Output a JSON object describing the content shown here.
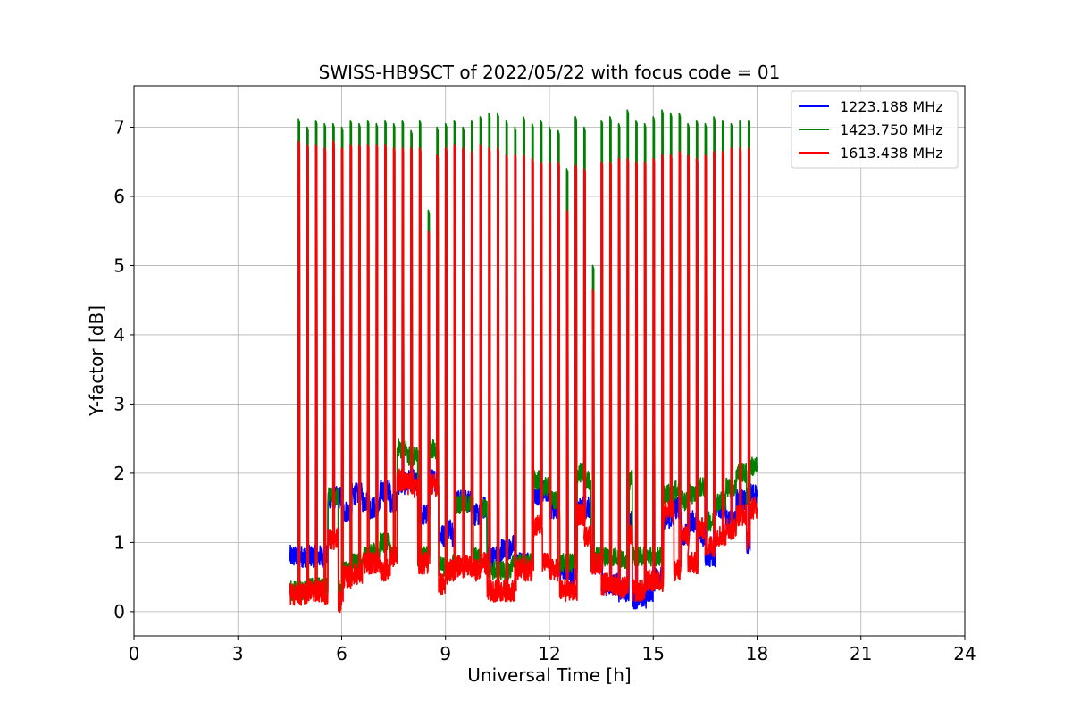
{
  "chart_data": {
    "type": "line",
    "title": "SWISS-HB9SCT of 2022/05/22 with focus code = 01",
    "xlabel": "Universal Time [h]",
    "ylabel": "Y-factor [dB]",
    "xlim": [
      0,
      24
    ],
    "ylim": [
      -0.35,
      7.6
    ],
    "xticks": [
      0,
      3,
      6,
      9,
      12,
      15,
      18,
      21,
      24
    ],
    "xtick_labels": [
      "0",
      "3",
      "6",
      "9",
      "12",
      "15",
      "18",
      "21",
      "24"
    ],
    "yticks": [
      0,
      1,
      2,
      3,
      4,
      5,
      6,
      7
    ],
    "ytick_labels": [
      "0",
      "1",
      "2",
      "3",
      "4",
      "5",
      "6",
      "7"
    ],
    "grid": true,
    "legend_position": "top-right",
    "series": [
      {
        "name": "1223.188 MHz",
        "color": "#0000ff",
        "baseline": [
          [
            4.5,
            0.8
          ],
          [
            5.0,
            0.8
          ],
          [
            5.5,
            0.8
          ],
          [
            5.6,
            1.65
          ],
          [
            5.9,
            1.65
          ],
          [
            6.0,
            1.45
          ],
          [
            6.3,
            1.7
          ],
          [
            6.6,
            1.6
          ],
          [
            6.8,
            1.5
          ],
          [
            7.1,
            1.75
          ],
          [
            7.4,
            1.6
          ],
          [
            7.6,
            1.85
          ],
          [
            7.9,
            1.9
          ],
          [
            8.1,
            1.85
          ],
          [
            8.2,
            1.4
          ],
          [
            8.4,
            1.4
          ],
          [
            8.5,
            1.9
          ],
          [
            8.7,
            1.9
          ],
          [
            8.8,
            1.1
          ],
          [
            9.0,
            1.2
          ],
          [
            9.2,
            1.1
          ],
          [
            9.3,
            1.6
          ],
          [
            9.6,
            1.6
          ],
          [
            9.8,
            1.4
          ],
          [
            10.0,
            1.5
          ],
          [
            10.2,
            0.8
          ],
          [
            10.6,
            0.9
          ],
          [
            10.9,
            0.95
          ],
          [
            11.0,
            0.7
          ],
          [
            11.3,
            0.7
          ],
          [
            11.5,
            1.7
          ],
          [
            11.8,
            1.75
          ],
          [
            12.0,
            1.5
          ],
          [
            12.3,
            0.6
          ],
          [
            12.6,
            0.5
          ],
          [
            12.8,
            1.5
          ],
          [
            13.0,
            1.5
          ],
          [
            13.2,
            0.7
          ],
          [
            13.5,
            0.4
          ],
          [
            14.0,
            0.3
          ],
          [
            14.3,
            1.3
          ],
          [
            14.4,
            0.2
          ],
          [
            14.8,
            0.3
          ],
          [
            15.0,
            0.5
          ],
          [
            15.3,
            1.35
          ],
          [
            15.6,
            1.5
          ],
          [
            15.8,
            1.1
          ],
          [
            16.0,
            1.3
          ],
          [
            16.3,
            1.1
          ],
          [
            16.5,
            0.8
          ],
          [
            16.8,
            1.5
          ],
          [
            17.1,
            1.3
          ],
          [
            17.4,
            1.6
          ],
          [
            17.7,
            1.0
          ],
          [
            17.8,
            1.7
          ],
          [
            18.0,
            1.65
          ]
        ]
      },
      {
        "name": "1423.750 MHz",
        "color": "#008000",
        "baseline": [
          [
            4.5,
            0.3
          ],
          [
            5.0,
            0.35
          ],
          [
            5.5,
            0.35
          ],
          [
            5.6,
            1.65
          ],
          [
            5.9,
            0.35
          ],
          [
            6.0,
            0.6
          ],
          [
            6.3,
            0.7
          ],
          [
            6.6,
            0.8
          ],
          [
            6.8,
            0.85
          ],
          [
            7.1,
            1.0
          ],
          [
            7.4,
            0.8
          ],
          [
            7.6,
            2.35
          ],
          [
            7.9,
            2.25
          ],
          [
            8.1,
            2.3
          ],
          [
            8.2,
            0.8
          ],
          [
            8.4,
            0.8
          ],
          [
            8.5,
            2.35
          ],
          [
            8.7,
            2.3
          ],
          [
            8.8,
            0.65
          ],
          [
            9.0,
            0.6
          ],
          [
            9.2,
            0.7
          ],
          [
            9.3,
            1.55
          ],
          [
            9.6,
            1.55
          ],
          [
            9.8,
            0.8
          ],
          [
            10.0,
            1.5
          ],
          [
            10.2,
            0.6
          ],
          [
            10.6,
            0.6
          ],
          [
            10.9,
            0.7
          ],
          [
            11.0,
            0.7
          ],
          [
            11.3,
            0.7
          ],
          [
            11.5,
            1.9
          ],
          [
            11.8,
            1.8
          ],
          [
            12.0,
            1.6
          ],
          [
            12.3,
            0.7
          ],
          [
            12.6,
            0.7
          ],
          [
            12.8,
            2.0
          ],
          [
            13.0,
            1.9
          ],
          [
            13.2,
            0.8
          ],
          [
            13.5,
            0.8
          ],
          [
            14.0,
            0.75
          ],
          [
            14.3,
            1.9
          ],
          [
            14.4,
            0.8
          ],
          [
            14.8,
            0.8
          ],
          [
            15.0,
            0.8
          ],
          [
            15.3,
            1.7
          ],
          [
            15.6,
            1.75
          ],
          [
            15.8,
            1.6
          ],
          [
            16.0,
            1.7
          ],
          [
            16.3,
            1.8
          ],
          [
            16.5,
            1.3
          ],
          [
            16.8,
            1.6
          ],
          [
            17.1,
            1.8
          ],
          [
            17.4,
            2.0
          ],
          [
            17.7,
            1.65
          ],
          [
            17.8,
            2.1
          ],
          [
            18.0,
            2.15
          ]
        ]
      },
      {
        "name": "1613.438 MHz",
        "color": "#ff0000",
        "baseline": [
          [
            4.5,
            0.25
          ],
          [
            5.0,
            0.3
          ],
          [
            5.5,
            0.25
          ],
          [
            5.6,
            1.05
          ],
          [
            5.9,
            0.15
          ],
          [
            6.0,
            0.5
          ],
          [
            6.3,
            0.55
          ],
          [
            6.6,
            0.7
          ],
          [
            6.8,
            0.7
          ],
          [
            7.1,
            0.6
          ],
          [
            7.4,
            0.8
          ],
          [
            7.6,
            1.9
          ],
          [
            7.9,
            1.85
          ],
          [
            8.1,
            1.8
          ],
          [
            8.2,
            0.7
          ],
          [
            8.4,
            0.7
          ],
          [
            8.5,
            1.85
          ],
          [
            8.7,
            1.8
          ],
          [
            8.8,
            0.4
          ],
          [
            9.0,
            0.6
          ],
          [
            9.2,
            0.6
          ],
          [
            9.3,
            0.65
          ],
          [
            9.6,
            0.65
          ],
          [
            9.8,
            0.6
          ],
          [
            10.0,
            0.7
          ],
          [
            10.2,
            0.3
          ],
          [
            10.6,
            0.3
          ],
          [
            10.9,
            0.3
          ],
          [
            11.0,
            0.6
          ],
          [
            11.3,
            0.6
          ],
          [
            11.5,
            1.25
          ],
          [
            11.8,
            0.7
          ],
          [
            12.0,
            0.6
          ],
          [
            12.3,
            0.3
          ],
          [
            12.6,
            0.3
          ],
          [
            12.8,
            1.4
          ],
          [
            13.0,
            1.1
          ],
          [
            13.2,
            0.7
          ],
          [
            13.5,
            0.4
          ],
          [
            14.0,
            0.35
          ],
          [
            14.3,
            1.1
          ],
          [
            14.4,
            0.3
          ],
          [
            14.8,
            0.45
          ],
          [
            15.0,
            0.45
          ],
          [
            15.3,
            1.45
          ],
          [
            15.6,
            0.6
          ],
          [
            15.8,
            1.1
          ],
          [
            16.0,
            0.7
          ],
          [
            16.3,
            1.2
          ],
          [
            16.5,
            0.95
          ],
          [
            16.8,
            1.1
          ],
          [
            17.1,
            1.2
          ],
          [
            17.4,
            1.4
          ],
          [
            17.7,
            1.05
          ],
          [
            17.8,
            1.5
          ],
          [
            18.0,
            1.5
          ]
        ]
      }
    ],
    "calibration_spikes": [
      {
        "x": 4.5,
        "green": 7.05,
        "red": 6.85
      },
      {
        "x": 4.75,
        "green": 7.12,
        "red": 6.8
      },
      {
        "x": 5.0,
        "green": 7.0,
        "red": 6.75
      },
      {
        "x": 5.25,
        "green": 7.1,
        "red": 6.75
      },
      {
        "x": 5.5,
        "green": 7.05,
        "red": 6.7
      },
      {
        "x": 5.75,
        "green": 7.05,
        "red": 6.8
      },
      {
        "x": 6.0,
        "green": 7.0,
        "red": 6.7
      },
      {
        "x": 6.25,
        "green": 7.1,
        "red": 6.75
      },
      {
        "x": 6.5,
        "green": 7.05,
        "red": 6.75
      },
      {
        "x": 6.75,
        "green": 7.1,
        "red": 6.75
      },
      {
        "x": 7.0,
        "green": 7.05,
        "red": 6.75
      },
      {
        "x": 7.25,
        "green": 7.1,
        "red": 6.75
      },
      {
        "x": 7.5,
        "green": 7.05,
        "red": 6.7
      },
      {
        "x": 7.75,
        "green": 7.1,
        "red": 6.7
      },
      {
        "x": 8.0,
        "green": 6.95,
        "red": 6.7
      },
      {
        "x": 8.25,
        "green": 7.1,
        "red": 6.7
      },
      {
        "x": 8.5,
        "green": 5.8,
        "red": 5.5
      },
      {
        "x": 8.75,
        "green": 7.0,
        "red": 6.6
      },
      {
        "x": 9.0,
        "green": 7.05,
        "red": 6.7
      },
      {
        "x": 9.25,
        "green": 7.1,
        "red": 6.75
      },
      {
        "x": 9.5,
        "green": 7.0,
        "red": 6.7
      },
      {
        "x": 9.75,
        "green": 7.1,
        "red": 6.65
      },
      {
        "x": 10.0,
        "green": 7.15,
        "red": 6.75
      },
      {
        "x": 10.25,
        "green": 7.2,
        "red": 6.7
      },
      {
        "x": 10.5,
        "green": 7.2,
        "red": 6.7
      },
      {
        "x": 10.75,
        "green": 7.1,
        "red": 6.6
      },
      {
        "x": 11.0,
        "green": 7.0,
        "red": 6.6
      },
      {
        "x": 11.25,
        "green": 7.15,
        "red": 6.6
      },
      {
        "x": 11.5,
        "green": 7.05,
        "red": 6.55
      },
      {
        "x": 11.75,
        "green": 7.1,
        "red": 6.5
      },
      {
        "x": 12.0,
        "green": 7.0,
        "red": 6.5
      },
      {
        "x": 12.25,
        "green": 6.95,
        "red": 6.5
      },
      {
        "x": 12.5,
        "green": 6.4,
        "red": 5.8
      },
      {
        "x": 12.75,
        "green": 7.15,
        "red": 6.45
      },
      {
        "x": 13.0,
        "green": 7.0,
        "red": 6.4
      },
      {
        "x": 13.25,
        "green": 5.0,
        "red": 4.65
      },
      {
        "x": 13.5,
        "green": 7.1,
        "red": 6.5
      },
      {
        "x": 13.75,
        "green": 7.15,
        "red": 6.5
      },
      {
        "x": 14.0,
        "green": 7.05,
        "red": 6.55
      },
      {
        "x": 14.25,
        "green": 7.25,
        "red": 6.55
      },
      {
        "x": 14.5,
        "green": 7.1,
        "red": 6.5
      },
      {
        "x": 14.75,
        "green": 7.05,
        "red": 6.5
      },
      {
        "x": 15.0,
        "green": 7.15,
        "red": 6.55
      },
      {
        "x": 15.25,
        "green": 7.25,
        "red": 6.6
      },
      {
        "x": 15.5,
        "green": 7.2,
        "red": 6.6
      },
      {
        "x": 15.75,
        "green": 7.2,
        "red": 6.65
      },
      {
        "x": 16.0,
        "green": 7.05,
        "red": 6.6
      },
      {
        "x": 16.25,
        "green": 7.1,
        "red": 6.55
      },
      {
        "x": 16.5,
        "green": 7.05,
        "red": 6.6
      },
      {
        "x": 16.75,
        "green": 7.15,
        "red": 6.65
      },
      {
        "x": 17.0,
        "green": 7.1,
        "red": 6.65
      },
      {
        "x": 17.25,
        "green": 7.05,
        "red": 6.7
      },
      {
        "x": 17.5,
        "green": 7.1,
        "red": 6.7
      },
      {
        "x": 17.75,
        "green": 7.1,
        "red": 6.7
      }
    ]
  }
}
